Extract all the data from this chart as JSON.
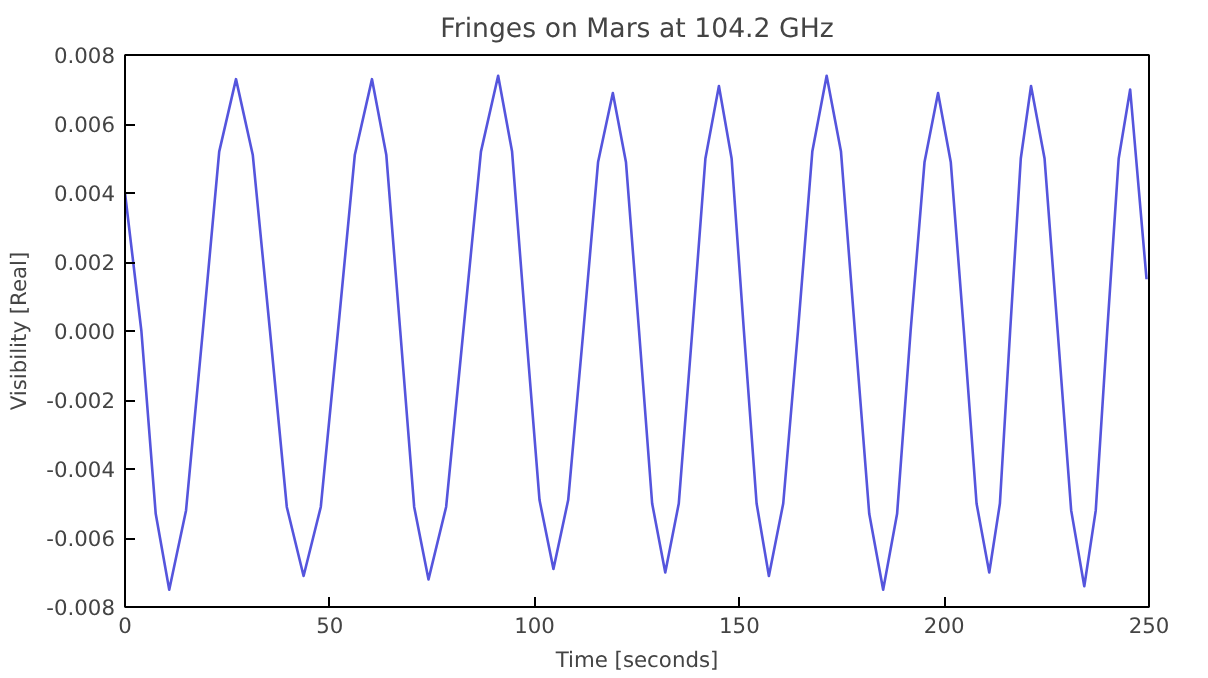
{
  "chart_data": {
    "type": "line",
    "title": "Fringes on Mars at 104.2 GHz",
    "xlabel": "Time [seconds]",
    "ylabel": "Visibility [Real]",
    "xlim": [
      0,
      250
    ],
    "xticks": [
      0,
      50,
      100,
      150,
      200,
      250
    ],
    "ylim": [
      -0.008,
      0.008
    ],
    "yticks": [
      -0.008,
      -0.006,
      -0.004,
      -0.002,
      {
        "value": 0,
        "label": "0.000"
      },
      0.002,
      0.004,
      0.006,
      0.008
    ],
    "grid": false,
    "line_style": "solid",
    "series": [
      {
        "color": "#5555dd",
        "x": [
          0,
          4,
          7.5,
          10.8,
          14.9,
          19.0,
          23.0,
          27.1,
          31.2,
          35.4,
          39.5,
          43.6,
          47.8,
          52.0,
          56.1,
          60.3,
          63.8,
          67.2,
          70.6,
          74.1,
          78.4,
          82.6,
          86.9,
          91.1,
          94.5,
          97.9,
          101.2,
          104.6,
          108.2,
          111.9,
          115.5,
          119.1,
          122.3,
          125.5,
          128.7,
          131.9,
          135.2,
          138.5,
          141.7,
          145.0,
          148.1,
          151.1,
          154.2,
          157.2,
          160.7,
          164.3,
          167.8,
          171.3,
          174.8,
          178.2,
          181.7,
          185.1,
          188.5,
          191.8,
          195.2,
          198.5,
          201.6,
          204.8,
          207.9,
          211.0,
          213.6,
          216.1,
          218.7,
          221.2,
          224.5,
          227.7,
          231.0,
          234.2,
          237.0,
          239.8,
          242.6,
          245.4,
          249.4
        ],
        "values": [
          0.004,
          0.0,
          -0.0053,
          -0.0075,
          -0.0052,
          0.0,
          0.0052,
          0.0073,
          0.0051,
          0.0,
          -0.0051,
          -0.0071,
          -0.0051,
          0.0,
          0.0051,
          0.0073,
          0.0051,
          0.0,
          -0.0051,
          -0.0072,
          -0.0051,
          0.0,
          0.0052,
          0.0074,
          0.0052,
          0.0,
          -0.0049,
          -0.0069,
          -0.0049,
          0.0,
          0.0049,
          0.0069,
          0.0049,
          0.0,
          -0.005,
          -0.007,
          -0.005,
          0.0,
          0.005,
          0.0071,
          0.005,
          0.0,
          -0.005,
          -0.0071,
          -0.005,
          0.0,
          0.0052,
          0.0074,
          0.0052,
          0.0,
          -0.0053,
          -0.0075,
          -0.0053,
          0.0,
          0.0049,
          0.0069,
          0.0049,
          0.0,
          -0.005,
          -0.007,
          -0.005,
          0.0,
          0.005,
          0.0071,
          0.005,
          0.0,
          -0.0052,
          -0.0074,
          -0.0052,
          0.0,
          0.005,
          0.007,
          0.0015
        ]
      }
    ]
  }
}
